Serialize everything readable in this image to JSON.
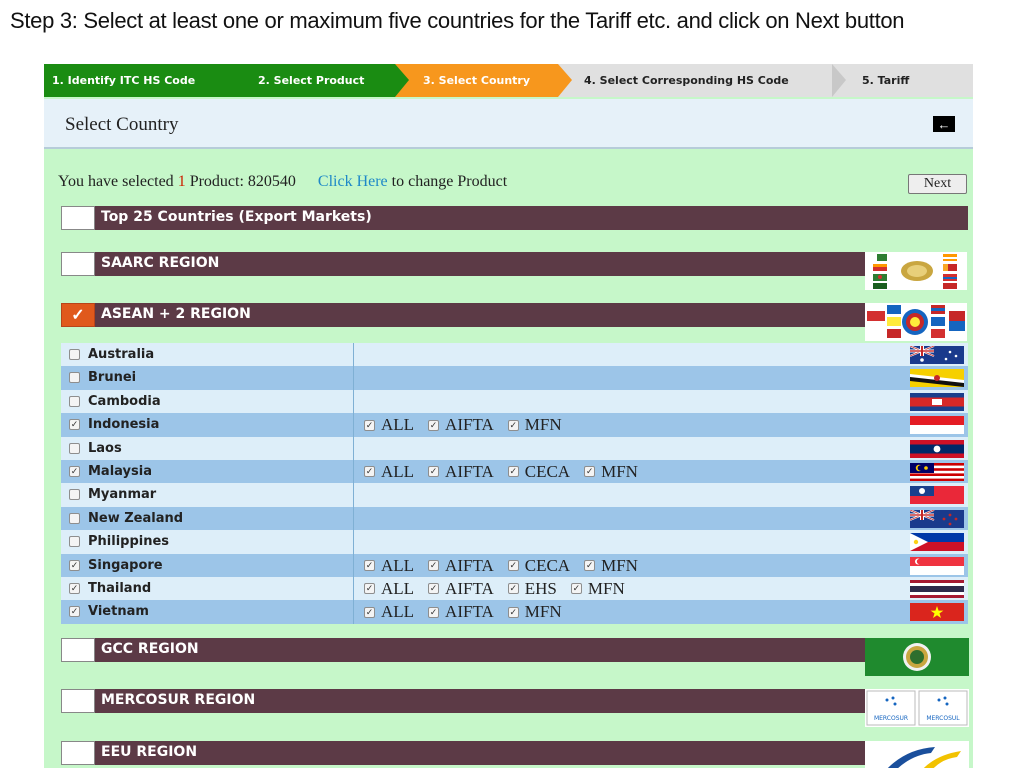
{
  "caption": "Step 3: Select at least one or maximum five countries for the Tariff etc. and click on Next button",
  "steps": [
    {
      "label": "1. Identify ITC HS Code",
      "state": "done"
    },
    {
      "label": "2. Select Product",
      "state": "done"
    },
    {
      "label": "3. Select Country",
      "state": "current"
    },
    {
      "label": "4. Select Corresponding HS Code",
      "state": "todo"
    },
    {
      "label": "5. Tariff",
      "state": "todo"
    }
  ],
  "header": {
    "title": "Select Country",
    "back_icon": "arrow-left-icon"
  },
  "info": {
    "prefix": "You have selected",
    "count": "1",
    "product_text": "Product: 820540",
    "link": "Click Here",
    "suffix": "to change Product"
  },
  "next_button": "Next",
  "regions": [
    {
      "label": "Top 25 Countries (Export Markets)",
      "checked": false
    },
    {
      "label": "SAARC REGION",
      "checked": false
    },
    {
      "label": "ASEAN + 2 REGION",
      "checked": true
    },
    {
      "label": "GCC REGION",
      "checked": false
    },
    {
      "label": "MERCOSUR REGION",
      "checked": false
    },
    {
      "label": "EEU REGION",
      "checked": false
    }
  ],
  "mercosur_logo_text": [
    "MERCOSUR",
    "MERCOSUL"
  ],
  "countries": [
    {
      "name": "Australia",
      "checked": false,
      "options": []
    },
    {
      "name": "Brunei",
      "checked": false,
      "options": []
    },
    {
      "name": "Cambodia",
      "checked": false,
      "options": []
    },
    {
      "name": "Indonesia",
      "checked": true,
      "options": [
        "ALL",
        "AIFTA",
        "MFN"
      ]
    },
    {
      "name": "Laos",
      "checked": false,
      "options": []
    },
    {
      "name": "Malaysia",
      "checked": true,
      "options": [
        "ALL",
        "AIFTA",
        "CECA",
        "MFN"
      ]
    },
    {
      "name": "Myanmar",
      "checked": false,
      "options": []
    },
    {
      "name": "New Zealand",
      "checked": false,
      "options": []
    },
    {
      "name": "Philippines",
      "checked": false,
      "options": []
    },
    {
      "name": "Singapore",
      "checked": true,
      "options": [
        "ALL",
        "AIFTA",
        "CECA",
        "MFN"
      ]
    },
    {
      "name": "Thailand",
      "checked": true,
      "options": [
        "ALL",
        "AIFTA",
        "EHS",
        "MFN"
      ]
    },
    {
      "name": "Vietnam",
      "checked": true,
      "options": [
        "ALL",
        "AIFTA",
        "MFN"
      ]
    }
  ],
  "colors": {
    "panel_bg": "#c6f7c9",
    "step_done": "#1a8c12",
    "step_current": "#f7971d",
    "region_bar": "#5c3a46",
    "region_checked": "#e0591c",
    "row_light": "#ddeef9",
    "row_dark": "#9cc5e8",
    "link": "#1e88c8"
  }
}
